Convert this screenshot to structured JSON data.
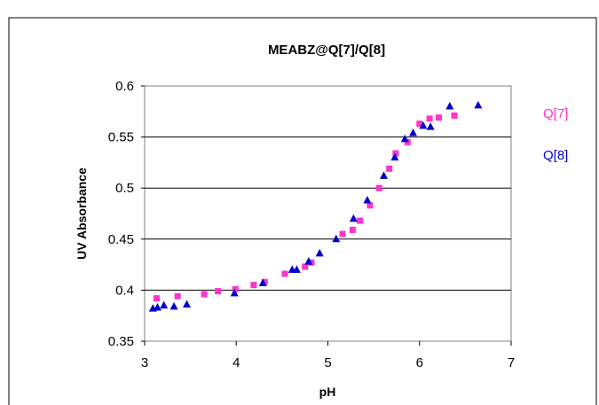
{
  "chart_data": {
    "type": "scatter",
    "title": "MEABZ@Q[7]/Q[8]",
    "xlabel": "pH",
    "ylabel": "UV Absorbance",
    "xlim": [
      3,
      7
    ],
    "ylim": [
      0.35,
      0.6
    ],
    "xticks": [
      "3",
      "4",
      "5",
      "6",
      "7"
    ],
    "yticks": [
      "0.35",
      "0.4",
      "0.45",
      "0.5",
      "0.55",
      "0.6"
    ],
    "grid": "horizontal",
    "legend": "right",
    "series": [
      {
        "name": "Q[7]",
        "marker": "square",
        "color": "#ff33cc",
        "points": [
          [
            3.13,
            0.392
          ],
          [
            3.36,
            0.394
          ],
          [
            3.65,
            0.396
          ],
          [
            3.8,
            0.399
          ],
          [
            3.99,
            0.401
          ],
          [
            4.19,
            0.405
          ],
          [
            4.31,
            0.408
          ],
          [
            4.53,
            0.416
          ],
          [
            4.75,
            0.423
          ],
          [
            4.82,
            0.427
          ],
          [
            5.16,
            0.455
          ],
          [
            5.27,
            0.459
          ],
          [
            5.35,
            0.468
          ],
          [
            5.46,
            0.483
          ],
          [
            5.56,
            0.5
          ],
          [
            5.67,
            0.519
          ],
          [
            5.74,
            0.534
          ],
          [
            5.87,
            0.545
          ],
          [
            6.0,
            0.563
          ],
          [
            6.11,
            0.568
          ],
          [
            6.21,
            0.569
          ],
          [
            6.38,
            0.571
          ]
        ]
      },
      {
        "name": "Q[8]",
        "marker": "triangle",
        "color": "#0000cc",
        "points": [
          [
            3.09,
            0.382
          ],
          [
            3.14,
            0.383
          ],
          [
            3.21,
            0.385
          ],
          [
            3.32,
            0.384
          ],
          [
            3.46,
            0.386
          ],
          [
            3.98,
            0.397
          ],
          [
            4.29,
            0.407
          ],
          [
            4.61,
            0.42
          ],
          [
            4.66,
            0.42
          ],
          [
            4.79,
            0.428
          ],
          [
            4.91,
            0.436
          ],
          [
            5.09,
            0.45
          ],
          [
            5.28,
            0.47
          ],
          [
            5.43,
            0.488
          ],
          [
            5.61,
            0.512
          ],
          [
            5.73,
            0.53
          ],
          [
            5.84,
            0.548
          ],
          [
            5.93,
            0.554
          ],
          [
            6.04,
            0.561
          ],
          [
            6.12,
            0.56
          ],
          [
            6.33,
            0.58
          ],
          [
            6.64,
            0.581
          ]
        ]
      }
    ]
  }
}
